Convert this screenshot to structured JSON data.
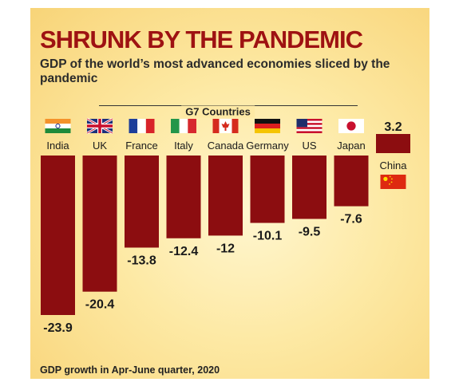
{
  "header": {
    "title": "SHRUNK BY THE PANDEMIC",
    "subtitle": "GDP of the world’s most advanced economies sliced by the pandemic",
    "group_label": "G7 Countries"
  },
  "footnote": "GDP growth in Apr-June quarter, 2020",
  "colors": {
    "bar": "#8c0d10",
    "title": "#9e1212",
    "background": "#fde9a4"
  },
  "chart_data": {
    "type": "bar",
    "categories": [
      "India",
      "UK",
      "France",
      "Italy",
      "Canada",
      "Germany",
      "US",
      "Japan",
      "China"
    ],
    "values": [
      -23.9,
      -20.4,
      -13.8,
      -12.4,
      -12,
      -10.1,
      -9.5,
      -7.6,
      3.2
    ],
    "value_labels": [
      "-23.9",
      "-20.4",
      "-13.8",
      "-12.4",
      "-12",
      "-10.1",
      "-9.5",
      "-7.6",
      "3.2"
    ],
    "flags": [
      "india-flag",
      "uk-flag",
      "france-flag",
      "italy-flag",
      "canada-flag",
      "germany-flag",
      "us-flag",
      "japan-flag",
      "china-flag"
    ],
    "ylim": [
      -23.9,
      3.2
    ],
    "grid": false,
    "legend": "none"
  }
}
